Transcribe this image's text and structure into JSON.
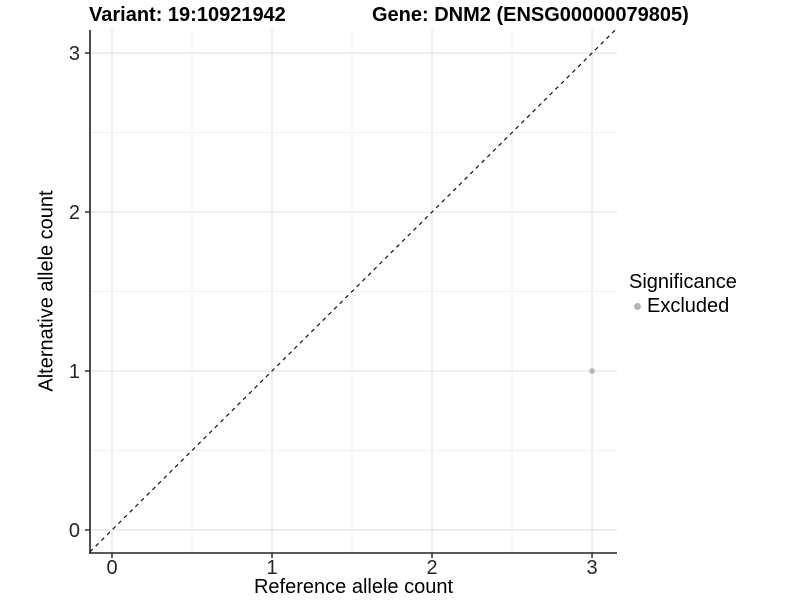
{
  "chart_data": {
    "type": "scatter",
    "title_left": "Variant: 19:10921942",
    "title_right": "Gene: DNM2 (ENSG00000079805)",
    "xlabel": "Reference allele count",
    "ylabel": "Alternative allele count",
    "xlim": [
      -0.1375,
      3.156
    ],
    "ylim": [
      -0.145,
      3.145
    ],
    "xticks": [
      0,
      1,
      2,
      3
    ],
    "yticks": [
      0,
      1,
      2,
      3
    ],
    "xticks_minor": [
      0.5,
      1.5,
      2.5
    ],
    "yticks_minor": [
      0.5,
      1.5,
      2.5
    ],
    "grid": true,
    "points": [
      {
        "x": 3,
        "y": 1,
        "series": "Excluded"
      }
    ],
    "reference_line": {
      "style": "dashed",
      "slope": 1,
      "intercept": 0
    },
    "legend": {
      "title": "Significance",
      "position": "right",
      "entries": [
        {
          "label": "Excluded",
          "color": "#b5b5b5"
        }
      ]
    },
    "colors": {
      "point": "#b5b5b5",
      "grid_major": "#e5e5e5",
      "grid_minor": "#f0f0f0",
      "axis_line": "#222222",
      "tick_text": "#262626",
      "dashed_line": "#111111",
      "background": "#ffffff"
    }
  }
}
